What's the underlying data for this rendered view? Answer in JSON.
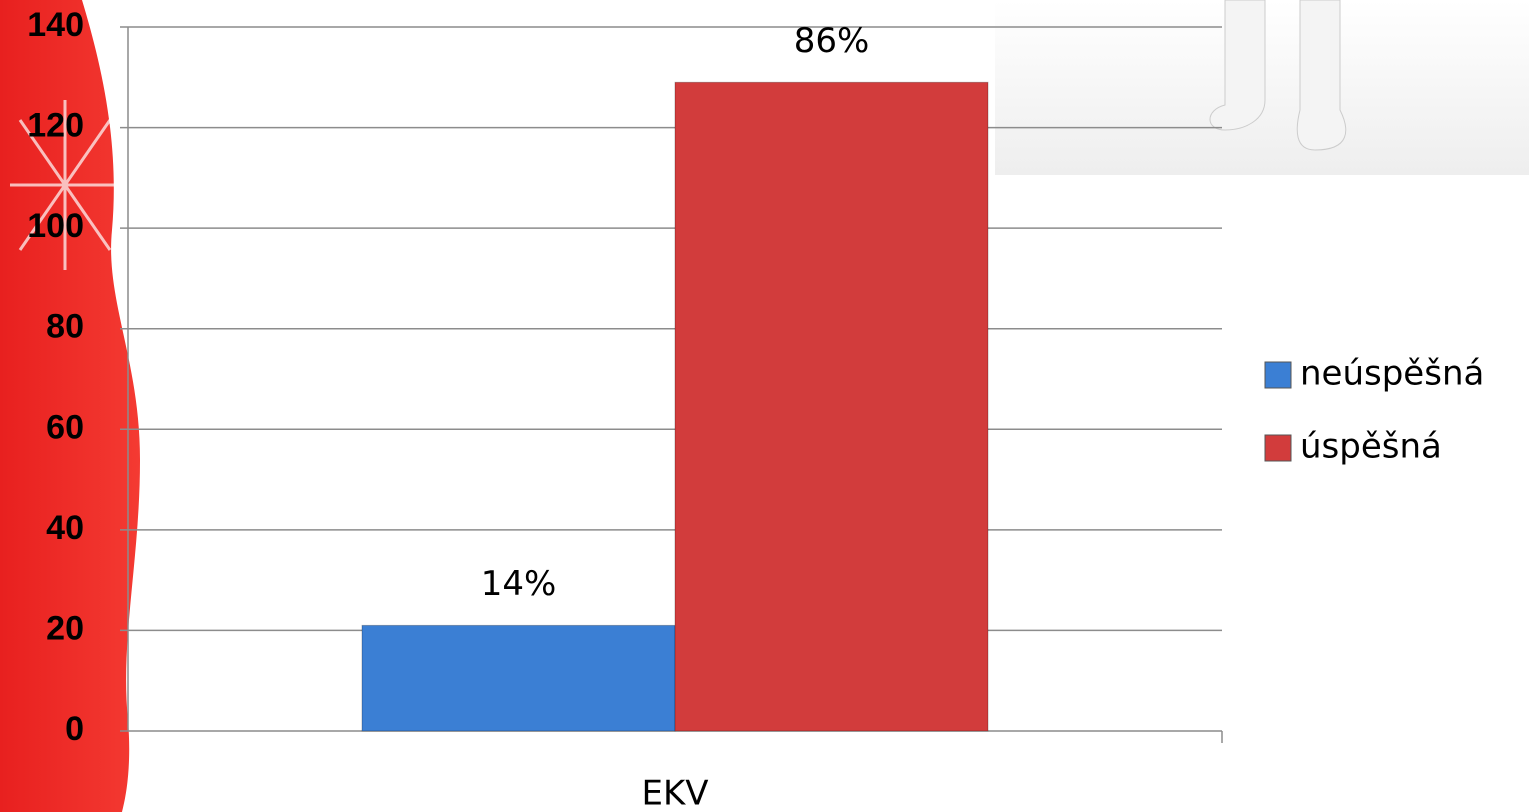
{
  "chart_data": {
    "type": "bar",
    "categories": [
      "EKV"
    ],
    "series": [
      {
        "name": "neúspěšná",
        "color": "#3b7fd4",
        "values": [
          21
        ],
        "value_labels": [
          "14%"
        ]
      },
      {
        "name": "úspěšná",
        "color": "#d23c3c",
        "values": [
          129
        ],
        "value_labels": [
          "86%"
        ]
      }
    ],
    "ylim": [
      0,
      140
    ],
    "yticks": [
      0,
      20,
      40,
      60,
      80,
      100,
      120,
      140
    ],
    "grid": true,
    "legend": "right"
  }
}
